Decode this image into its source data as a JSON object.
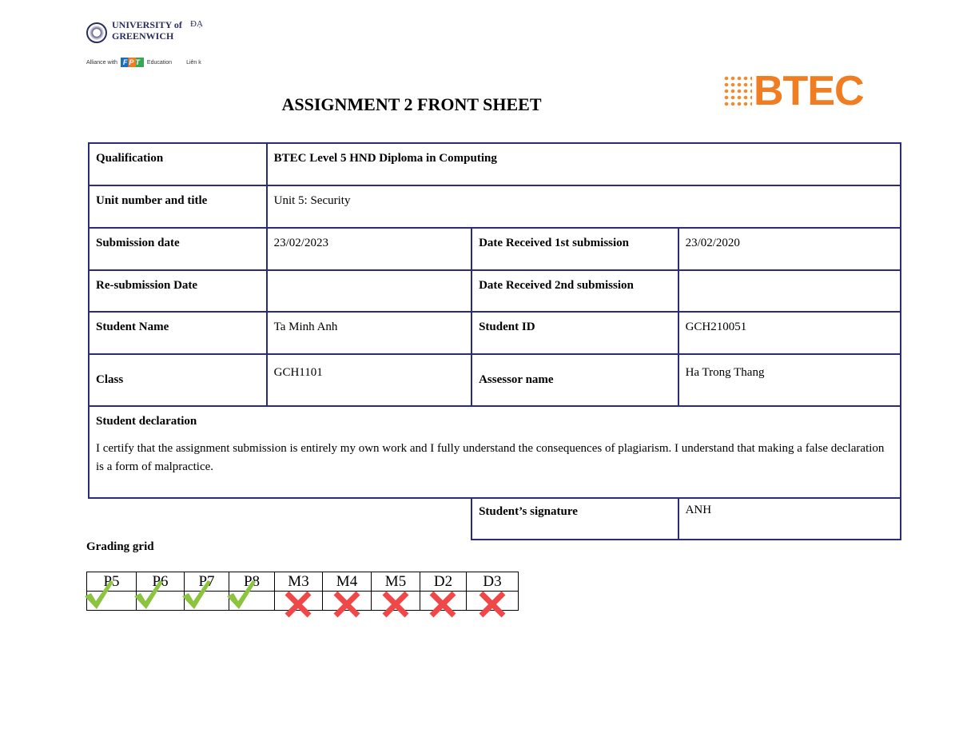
{
  "header": {
    "university": "UNIVERSITY of GREENWICH",
    "partner_short": "ĐẠ",
    "alliance": "Alliance with",
    "fpt": "FPT",
    "education": "Education",
    "lien_ket": "Liên k",
    "btec_logo": "BTEC"
  },
  "title": "ASSIGNMENT 2 FRONT SHEET",
  "form": {
    "qualification_label": "Qualification",
    "qualification": "BTEC Level 5 HND Diploma in Computing",
    "unit_label": "Unit number and title",
    "unit": "Unit 5: Security",
    "submission_label": "Submission date",
    "submission": "23/02/2023",
    "received1_label": "Date Received 1st submission",
    "received1": "23/02/2020",
    "resubmission_label": "Re-submission Date",
    "resubmission": "",
    "received2_label": "Date Received 2nd submission",
    "received2": "",
    "student_name_label": "Student Name",
    "student_name": "Ta Minh Anh",
    "student_id_label": "Student ID",
    "student_id": "GCH210051",
    "class_label": "Class",
    "class": "GCH1101",
    "assessor_label": "Assessor name",
    "assessor": "Ha Trong Thang",
    "declaration_label": "Student declaration",
    "declaration": "I certify that the assignment submission is entirely my own work and I fully understand the consequences of plagiarism. I understand that making a false declaration is a form of malpractice.",
    "signature_label": "Student’s signature",
    "signature": "ANH"
  },
  "grading": {
    "label": "Grading grid",
    "criteria": [
      {
        "code": "P5",
        "achieved": true
      },
      {
        "code": "P6",
        "achieved": true
      },
      {
        "code": "P7",
        "achieved": true
      },
      {
        "code": "P8",
        "achieved": true
      },
      {
        "code": "M3",
        "achieved": false
      },
      {
        "code": "M4",
        "achieved": false
      },
      {
        "code": "M5",
        "achieved": false
      },
      {
        "code": "D2",
        "achieved": false
      },
      {
        "code": "D3",
        "achieved": false
      }
    ],
    "colors": {
      "achieved": "#8cc43f",
      "not_achieved": "#f04848"
    }
  }
}
